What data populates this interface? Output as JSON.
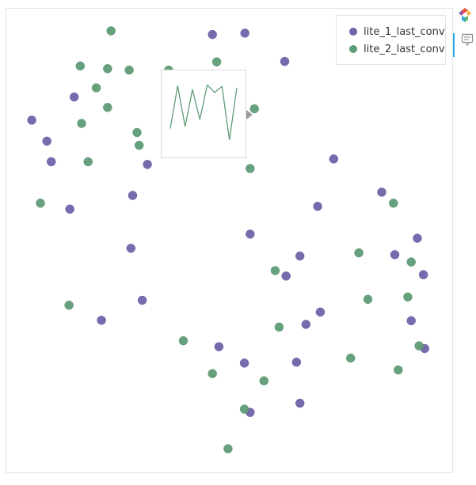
{
  "colors": {
    "lite_1": "#6f63a9",
    "lite_2": "#5f9b76",
    "frame": "#e5e5e5"
  },
  "legend": {
    "items": [
      {
        "label": "lite_1_last_conv",
        "color": "#6f63a9"
      },
      {
        "label": "lite_2_last_conv",
        "color": "#5f9b76"
      }
    ],
    "placement": "top-right"
  },
  "toolbar": {
    "logo_icon": "bokeh-logo-icon",
    "hover_icon": "hover-tooltip-icon"
  },
  "chart_data": {
    "type": "scatter",
    "title": "",
    "xlabel": "",
    "ylabel": "",
    "xlim": [
      0,
      100
    ],
    "ylim": [
      0,
      100
    ],
    "grid": false,
    "series": [
      {
        "name": "lite_1_last_conv",
        "color": "#6f63a9",
        "points": [
          [
            46.1,
            95.2
          ],
          [
            53.6,
            95.5
          ],
          [
            62.8,
            89.3
          ],
          [
            14.2,
            81.5
          ],
          [
            4.4,
            76.4
          ],
          [
            7.9,
            71.8
          ],
          [
            8.9,
            67.3
          ],
          [
            31.1,
            66.7
          ],
          [
            74.1,
            67.9
          ],
          [
            27.7,
            59.9
          ],
          [
            13.2,
            56.9
          ],
          [
            85.2,
            60.6
          ],
          [
            70.4,
            57.5
          ],
          [
            27.3,
            48.3
          ],
          [
            54.8,
            51.4
          ],
          [
            93.4,
            50.5
          ],
          [
            66.3,
            46.6
          ],
          [
            88.2,
            46.9
          ],
          [
            63.1,
            42.2
          ],
          [
            94.8,
            42.5
          ],
          [
            29.9,
            36.9
          ],
          [
            20.5,
            32.5
          ],
          [
            71.0,
            34.3
          ],
          [
            67.7,
            31.6
          ],
          [
            92.0,
            32.4
          ],
          [
            47.6,
            26.7
          ],
          [
            95.1,
            26.3
          ],
          [
            53.5,
            23.1
          ],
          [
            65.5,
            23.3
          ],
          [
            54.8,
            12.3
          ],
          [
            66.3,
            14.3
          ]
        ]
      },
      {
        "name": "lite_2_last_conv",
        "color": "#5f9b76",
        "points": [
          [
            22.7,
            96.0
          ],
          [
            15.6,
            88.3
          ],
          [
            21.9,
            87.7
          ],
          [
            26.9,
            87.4
          ],
          [
            36.0,
            87.4
          ],
          [
            47.1,
            89.2
          ],
          [
            19.3,
            83.5
          ],
          [
            21.9,
            79.2
          ],
          [
            55.8,
            78.9
          ],
          [
            15.9,
            75.7
          ],
          [
            28.7,
            73.7
          ],
          [
            29.2,
            70.9
          ],
          [
            17.4,
            67.3
          ],
          [
            54.8,
            65.8
          ],
          [
            6.4,
            58.2
          ],
          [
            87.9,
            58.2
          ],
          [
            79.9,
            47.3
          ],
          [
            92.0,
            45.3
          ],
          [
            60.6,
            43.4
          ],
          [
            82.0,
            37.1
          ],
          [
            13.0,
            35.8
          ],
          [
            91.2,
            37.6
          ],
          [
            61.5,
            31.0
          ],
          [
            39.4,
            28.0
          ],
          [
            93.8,
            26.9
          ],
          [
            78.0,
            24.2
          ],
          [
            89.0,
            21.6
          ],
          [
            46.1,
            20.8
          ],
          [
            58.0,
            19.2
          ],
          [
            53.5,
            13.0
          ],
          [
            49.7,
            4.3
          ]
        ]
      }
    ],
    "tooltip_sparkline": {
      "type": "line",
      "color": "#5f9b76",
      "values": [
        3.0,
        8.7,
        3.3,
        8.2,
        4.2,
        8.8,
        7.8,
        8.6,
        1.5,
        8.4
      ]
    }
  }
}
